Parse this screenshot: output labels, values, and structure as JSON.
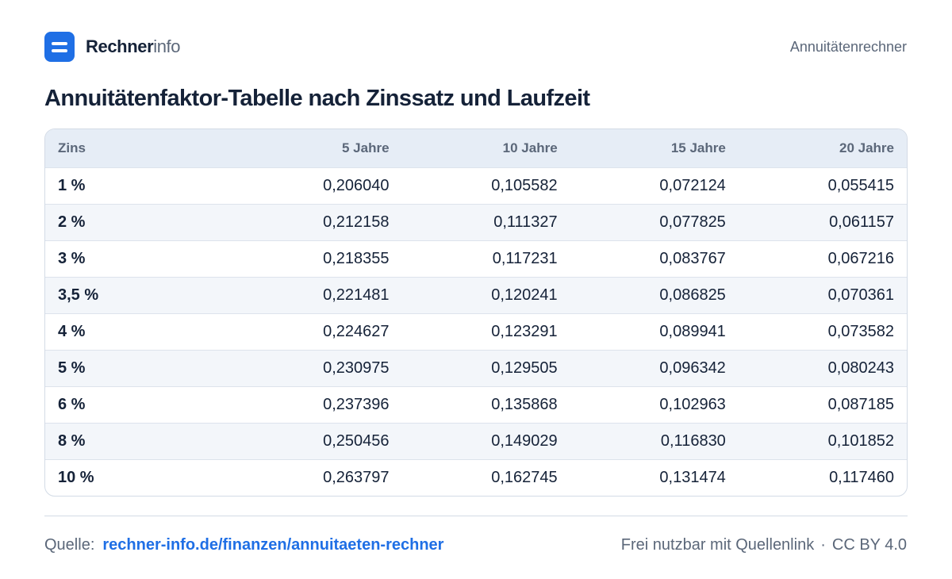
{
  "brand": {
    "name_strong": "Rechner",
    "name_light": "info",
    "icon": "menu-lines-icon",
    "accent_color": "#1f6fe5"
  },
  "header": {
    "page_label": "Annuitätenrechner"
  },
  "title": "Annuitätenfaktor-Tabelle  nach Zinssatz und Laufzeit",
  "chart_data": {
    "type": "table",
    "columns": [
      "Zins",
      "5 Jahre",
      "10 Jahre",
      "15 Jahre",
      "20 Jahre"
    ],
    "rows": [
      [
        "1 %",
        "0,206040",
        "0,105582",
        "0,072124",
        "0,055415"
      ],
      [
        "2 %",
        "0,212158",
        "0,111327",
        "0,077825",
        "0,061157"
      ],
      [
        "3 %",
        "0,218355",
        "0,117231",
        "0,083767",
        "0,067216"
      ],
      [
        "3,5 %",
        "0,221481",
        "0,120241",
        "0,086825",
        "0,070361"
      ],
      [
        "4 %",
        "0,224627",
        "0,123291",
        "0,089941",
        "0,073582"
      ],
      [
        "5 %",
        "0,230975",
        "0,129505",
        "0,096342",
        "0,080243"
      ],
      [
        "6 %",
        "0,237396",
        "0,135868",
        "0,102963",
        "0,087185"
      ],
      [
        "8 %",
        "0,250456",
        "0,149029",
        "0,116830",
        "0,101852"
      ],
      [
        "10 %",
        "0,263797",
        "0,162745",
        "0,131474",
        "0,117460"
      ]
    ]
  },
  "footer": {
    "source_label": "Quelle:",
    "source_link": "rechner-info.de/finanzen/annuitaeten-rechner",
    "license_text": "Frei nutzbar mit Quellenlink",
    "separator": "·",
    "license": "CC BY 4.0"
  }
}
